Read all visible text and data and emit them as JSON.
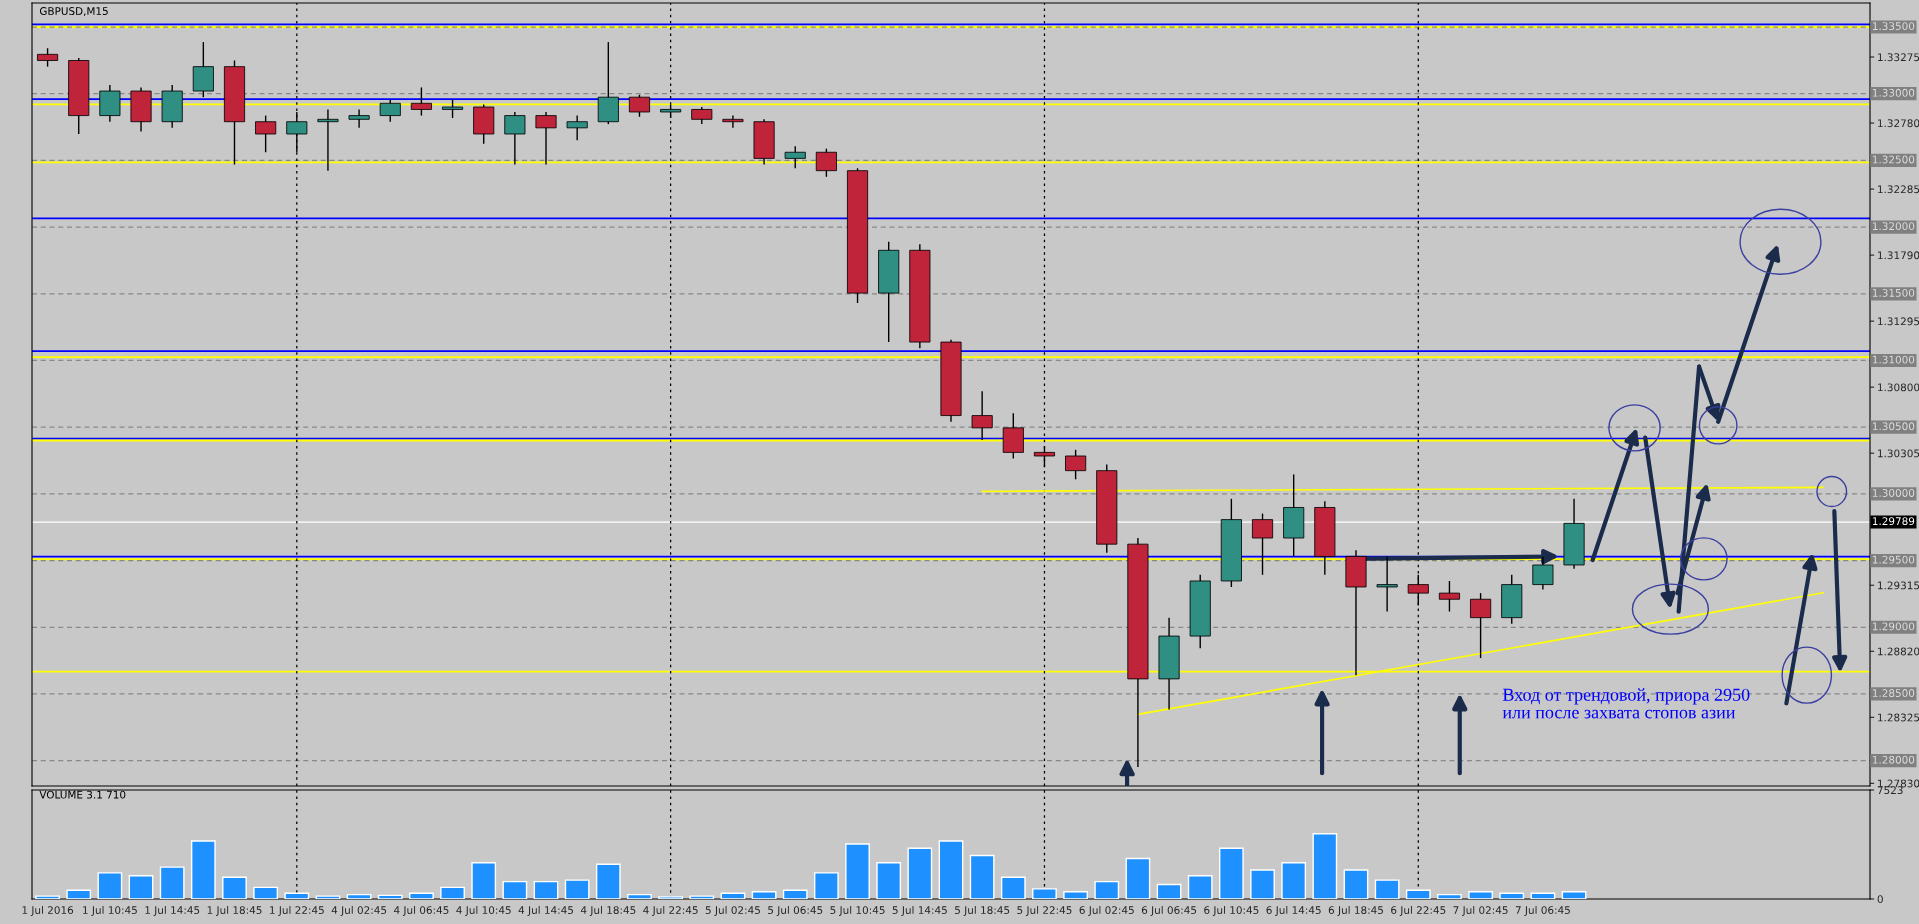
{
  "chart_data": [
    {
      "type": "candlestick",
      "title": "GBPUSD,M15",
      "categories": [
        "1 Jul 2016",
        null,
        "1 Jul 10:45",
        null,
        "1 Jul 14:45",
        null,
        "1 Jul 18:45",
        null,
        "1 Jul 22:45",
        null,
        "4 Jul 02:45",
        null,
        "4 Jul 06:45",
        null,
        "4 Jul 10:45",
        null,
        "4 Jul 14:45",
        null,
        "4 Jul 18:45",
        null,
        "4 Jul 22:45",
        null,
        "5 Jul 02:45",
        null,
        "5 Jul 06:45",
        null,
        "5 Jul 10:45",
        null,
        "5 Jul 14:45",
        null,
        "5 Jul 18:45",
        null,
        "5 Jul 22:45",
        null,
        "6 Jul 02:45",
        null,
        "6 Jul 06:45",
        null,
        "6 Jul 10:45",
        null,
        "6 Jul 14:45",
        null,
        "6 Jul 18:45",
        null,
        "6 Jul 22:45",
        null,
        "7 Jul 02:45",
        null,
        "7 Jul 06:45",
        null,
        null,
        null,
        null,
        null,
        null,
        null,
        null,
        null,
        null
      ],
      "ohlc": [
        [
          1.33295,
          1.33341,
          1.33203,
          1.33249
        ],
        [
          1.33249,
          1.33267,
          1.32698,
          1.32836
        ],
        [
          1.32836,
          1.33065,
          1.3279,
          1.3302
        ],
        [
          1.3302,
          1.33047,
          1.32717,
          1.3279
        ],
        [
          1.3279,
          1.33065,
          1.32744,
          1.3302
        ],
        [
          1.3302,
          1.33387,
          1.32974,
          1.33203
        ],
        [
          1.33203,
          1.33249,
          1.32469,
          1.3279
        ],
        [
          1.3279,
          1.32836,
          1.32561,
          1.32698
        ],
        [
          1.32698,
          1.32863,
          1.32561,
          1.3279
        ],
        [
          1.3279,
          1.32882,
          1.32423,
          1.32808
        ],
        [
          1.32808,
          1.32882,
          1.32744,
          1.32836
        ],
        [
          1.32836,
          1.32955,
          1.3279,
          1.32928
        ],
        [
          1.32928,
          1.33047,
          1.32836,
          1.32882
        ],
        [
          1.32882,
          1.32955,
          1.32818,
          1.329
        ],
        [
          1.329,
          1.32919,
          1.32625,
          1.32698
        ],
        [
          1.32698,
          1.32863,
          1.32469,
          1.32836
        ],
        [
          1.32836,
          1.32863,
          1.32469,
          1.32744
        ],
        [
          1.32744,
          1.32836,
          1.32652,
          1.3279
        ],
        [
          1.3279,
          1.33387,
          1.32772,
          1.32974
        ],
        [
          1.32974,
          1.32992,
          1.32827,
          1.32863
        ],
        [
          1.32863,
          1.32919,
          1.32818,
          1.32882
        ],
        [
          1.32882,
          1.329,
          1.32772,
          1.32808
        ],
        [
          1.32808,
          1.32836,
          1.32744,
          1.3279
        ],
        [
          1.3279,
          1.32808,
          1.32469,
          1.32515
        ],
        [
          1.32515,
          1.32606,
          1.32441,
          1.32561
        ],
        [
          1.32561,
          1.32588,
          1.32377,
          1.32423
        ],
        [
          1.32423,
          1.32441,
          1.31431,
          1.31505
        ],
        [
          1.31505,
          1.3189,
          1.31138,
          1.31826
        ],
        [
          1.31826,
          1.31872,
          1.31092,
          1.31138
        ],
        [
          1.31138,
          1.31156,
          1.30541,
          1.30587
        ],
        [
          1.30587,
          1.3077,
          1.30403,
          1.30495
        ],
        [
          1.30495,
          1.30605,
          1.30266,
          1.30311
        ],
        [
          1.30311,
          1.30357,
          1.30201,
          1.30284
        ],
        [
          1.30284,
          1.3033,
          1.30109,
          1.30174
        ],
        [
          1.30174,
          1.3022,
          1.29559,
          1.29623
        ],
        [
          1.29623,
          1.29669,
          1.27952,
          1.28613
        ],
        [
          1.28613,
          1.29072,
          1.28384,
          1.28934
        ],
        [
          1.28934,
          1.29393,
          1.28843,
          1.29347
        ],
        [
          1.29347,
          1.29963,
          1.29302,
          1.29807
        ],
        [
          1.29807,
          1.29852,
          1.29393,
          1.29669
        ],
        [
          1.29669,
          1.30146,
          1.29531,
          1.29898
        ],
        [
          1.29898,
          1.29944,
          1.29393,
          1.29531
        ],
        [
          1.29531,
          1.29577,
          1.28641,
          1.29302
        ],
        [
          1.29302,
          1.29531,
          1.29118,
          1.2932
        ],
        [
          1.2932,
          1.29393,
          1.29164,
          1.29256
        ],
        [
          1.29256,
          1.29347,
          1.29118,
          1.2921
        ],
        [
          1.2921,
          1.29256,
          1.28769,
          1.29072
        ],
        [
          1.29072,
          1.29393,
          1.29026,
          1.2932
        ],
        [
          1.2932,
          1.29531,
          1.29283,
          1.29467
        ],
        [
          1.29467,
          1.29963,
          1.29439,
          1.29779
        ],
        null,
        null,
        null,
        null,
        null,
        null,
        null,
        null,
        null
      ],
      "colors": [
        "#c0243a",
        "#c0243a",
        "#2f8f83",
        "#c0243a",
        "#2f8f83",
        "#2f8f83",
        "#c0243a",
        "#c0243a",
        "#2f8f83",
        "#2f8f83",
        "#2f8f83",
        "#2f8f83",
        "#c0243a",
        "#2f8f83",
        "#c0243a",
        "#2f8f83",
        "#c0243a",
        "#2f8f83",
        "#2f8f83",
        "#c0243a",
        "#2f8f83",
        "#c0243a",
        "#c0243a",
        "#c0243a",
        "#2f8f83",
        "#c0243a",
        "#c0243a",
        "#2f8f83",
        "#c0243a",
        "#c0243a",
        "#c0243a",
        "#c0243a",
        "#c0243a",
        "#c0243a",
        "#c0243a",
        "#c0243a",
        "#2f8f83",
        "#2f8f83",
        "#2f8f83",
        "#c0243a",
        "#2f8f83",
        "#c0243a",
        "#c0243a",
        "#2f8f83",
        "#c0243a",
        "#c0243a",
        "#c0243a",
        "#2f8f83",
        "#2f8f83",
        "#2f8f83",
        null,
        null,
        null,
        null,
        null,
        null,
        null,
        null,
        null
      ],
      "ylim": [
        1.2781,
        1.3368
      ],
      "yticks": [
        {
          "value": 1.2783,
          "label": "1.27830"
        },
        {
          "value": 1.28325,
          "label": "1.28325"
        },
        {
          "value": 1.2882,
          "label": "1.28820"
        },
        {
          "value": 1.29315,
          "label": "1.29315"
        },
        {
          "value": 1.30305,
          "label": "1.30305"
        },
        {
          "value": 1.308,
          "label": "1.30800"
        },
        {
          "value": 1.31295,
          "label": "1.31295"
        },
        {
          "value": 1.3179,
          "label": "1.31790"
        },
        {
          "value": 1.32285,
          "label": "1.32285"
        },
        {
          "value": 1.3278,
          "label": "1.32780"
        },
        {
          "value": 1.33275,
          "label": "1.33275"
        }
      ],
      "tick_labels": "y",
      "ref_lines": [
        {
          "axis": "y",
          "value": 1.3352,
          "color": "#0000ff"
        },
        {
          "axis": "y",
          "value": 1.335,
          "color": "#ffff00"
        },
        {
          "axis": "y",
          "value": 1.3296,
          "color": "#0000ff"
        },
        {
          "axis": "y",
          "value": 1.3292,
          "color": "#ffff00"
        },
        {
          "axis": "y",
          "value": 1.32485,
          "color": "#ffff00"
        },
        {
          "axis": "y",
          "value": 1.32065,
          "color": "#0000ff"
        },
        {
          "axis": "y",
          "value": 1.3107,
          "color": "#0000ff"
        },
        {
          "axis": "y",
          "value": 1.31025,
          "color": "#ffff00"
        },
        {
          "axis": "y",
          "value": 1.30414,
          "color": "#0000ff"
        },
        {
          "axis": "y",
          "value": 1.304,
          "color": "#ffff00"
        },
        {
          "axis": "y",
          "value": 1.2953,
          "color": "#0000ff"
        },
        {
          "axis": "y",
          "value": 1.2951,
          "color": "#ffff00"
        },
        {
          "axis": "y",
          "value": 1.28668,
          "color": "#ffff00"
        },
        {
          "axis": "y",
          "value": 1.335,
          "label": "1.33500",
          "color": "#888888",
          "line_style": "dashed"
        },
        {
          "axis": "y",
          "value": 1.33,
          "label": "1.33000",
          "color": "#888888",
          "line_style": "dashed"
        },
        {
          "axis": "y",
          "value": 1.325,
          "label": "1.32500",
          "color": "#888888",
          "line_style": "dashed"
        },
        {
          "axis": "y",
          "value": 1.32,
          "label": "1.32000",
          "color": "#888888",
          "line_style": "dashed"
        },
        {
          "axis": "y",
          "value": 1.315,
          "label": "1.31500",
          "color": "#888888",
          "line_style": "dashed"
        },
        {
          "axis": "y",
          "value": 1.31,
          "label": "1.31000",
          "color": "#888888",
          "line_style": "dashed"
        },
        {
          "axis": "y",
          "value": 1.305,
          "label": "1.30500",
          "color": "#888888",
          "line_style": "dashed"
        },
        {
          "axis": "y",
          "value": 1.3,
          "label": "1.30000",
          "color": "#888888",
          "line_style": "dashed"
        },
        {
          "axis": "y",
          "value": 1.295,
          "label": "1.29500",
          "color": "#888888",
          "line_style": "dashed"
        },
        {
          "axis": "y",
          "value": 1.29,
          "label": "1.29000",
          "color": "#888888",
          "line_style": "dashed"
        },
        {
          "axis": "y",
          "value": 1.285,
          "label": "1.28500",
          "color": "#888888",
          "line_style": "dashed"
        },
        {
          "axis": "y",
          "value": 1.28,
          "label": "1.28000",
          "color": "#888888",
          "line_style": "dashed"
        },
        {
          "axis": "y",
          "value": 1.29789,
          "label": "1.29789",
          "color": "#ffffff",
          "line_style": "solid"
        },
        {
          "axis": "x",
          "value": "1 Jul 22:45",
          "color": "#000000",
          "line_style": "dotted"
        },
        {
          "axis": "x",
          "value": "4 Jul 22:45",
          "color": "#000000",
          "line_style": "dotted"
        },
        {
          "axis": "x",
          "value": "5 Jul 22:45",
          "color": "#000000",
          "line_style": "dotted"
        },
        {
          "axis": "x",
          "value": "6 Jul 22:45",
          "color": "#000000",
          "line_style": "dotted"
        }
      ],
      "series": [
        {
          "type": "line",
          "color": "#ffff00",
          "values": [
            null,
            null,
            null,
            null,
            null,
            null,
            null,
            null,
            null,
            null,
            null,
            null,
            null,
            null,
            null,
            null,
            null,
            null,
            null,
            null,
            null,
            null,
            null,
            null,
            null,
            null,
            null,
            null,
            null,
            null,
            null,
            null,
            null,
            null,
            null,
            1.28347,
            null,
            null,
            null,
            null,
            null,
            null,
            null,
            null,
            null,
            null,
            null,
            null,
            null,
            null,
            null,
            null,
            null,
            null,
            null,
            null,
            null,
            1.29259,
            null
          ]
        },
        {
          "type": "line",
          "color": "#ffff00",
          "values": [
            null,
            null,
            null,
            null,
            null,
            null,
            null,
            null,
            null,
            null,
            null,
            null,
            null,
            null,
            null,
            null,
            null,
            null,
            null,
            null,
            null,
            null,
            null,
            null,
            null,
            null,
            null,
            null,
            null,
            null,
            1.30019,
            null,
            null,
            null,
            null,
            null,
            null,
            null,
            null,
            null,
            null,
            null,
            null,
            null,
            null,
            null,
            null,
            null,
            null,
            null,
            null,
            null,
            null,
            null,
            null,
            null,
            null,
            1.30049,
            null
          ]
        }
      ],
      "annotations": [
        "Вход от трендовой, приора 2950\nили после захвата стопов азии"
      ]
    },
    {
      "type": "bar",
      "title": "VOLUME 3.1 710",
      "color": "#1e90ff",
      "categories": [
        "1 Jul 2016",
        null,
        "1 Jul 10:45",
        null,
        "1 Jul 14:45",
        null,
        "1 Jul 18:45",
        null,
        "1 Jul 22:45",
        null,
        "4 Jul 02:45",
        null,
        "4 Jul 06:45",
        null,
        "4 Jul 10:45",
        null,
        "4 Jul 14:45",
        null,
        "4 Jul 18:45",
        null,
        "4 Jul 22:45",
        null,
        "5 Jul 02:45",
        null,
        "5 Jul 06:45",
        null,
        "5 Jul 10:45",
        null,
        "5 Jul 14:45",
        null,
        "5 Jul 18:45",
        null,
        "5 Jul 22:45",
        null,
        "6 Jul 02:45",
        null,
        "6 Jul 06:45",
        null,
        "6 Jul 10:45",
        null,
        "6 Jul 14:45",
        null,
        "6 Jul 18:45",
        null,
        "6 Jul 22:45",
        null,
        "7 Jul 02:45",
        null,
        "7 Jul 06:45",
        null,
        null,
        null,
        null,
        null,
        null,
        null,
        null,
        null,
        null
      ],
      "values": [
        200,
        600,
        1800,
        1600,
        2200,
        4000,
        1500,
        800,
        400,
        200,
        300,
        250,
        400,
        800,
        2500,
        1200,
        1200,
        1300,
        2400,
        300,
        150,
        200,
        400,
        500,
        600,
        1800,
        3800,
        2500,
        3500,
        4000,
        3000,
        1500,
        700,
        500,
        1200,
        2800,
        1000,
        1600,
        3500,
        2000,
        2500,
        4500,
        2000,
        1300,
        600,
        300,
        500,
        400,
        400,
        500,
        null,
        null,
        null,
        null,
        null,
        null,
        null,
        null,
        null
      ],
      "ylim": [
        0,
        7523
      ],
      "yticks": [
        0,
        7523
      ],
      "ref_lines": [
        {
          "axis": "x",
          "value": "1 Jul 22:45",
          "color": "#000000",
          "line_style": "dotted"
        },
        {
          "axis": "x",
          "value": "4 Jul 22:45",
          "color": "#000000",
          "line_style": "dotted"
        },
        {
          "axis": "x",
          "value": "5 Jul 22:45",
          "color": "#000000",
          "line_style": "dotted"
        },
        {
          "axis": "x",
          "value": "6 Jul 22:45",
          "color": "#000000",
          "line_style": "dotted"
        }
      ]
    }
  ]
}
